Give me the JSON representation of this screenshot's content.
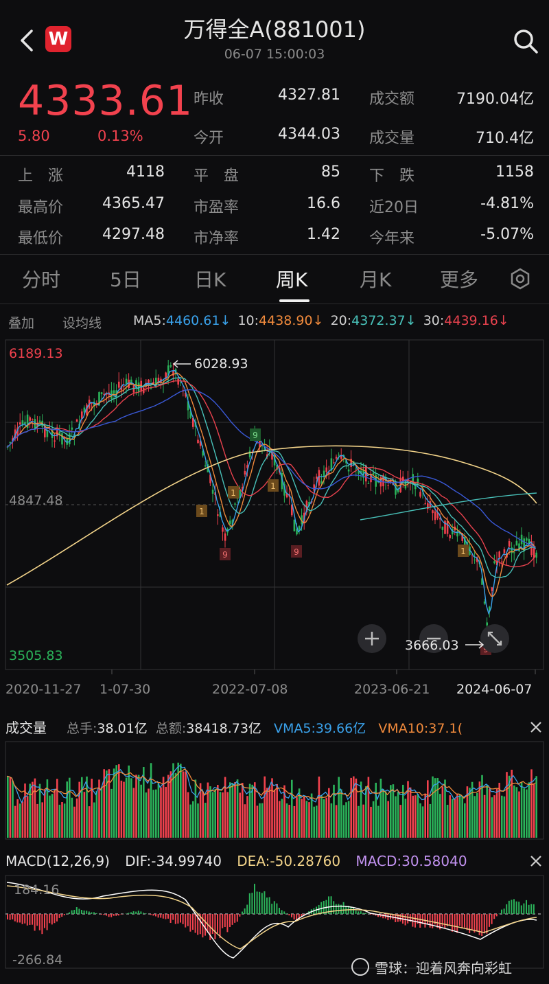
{
  "header": {
    "title": "万得全A(881001)",
    "datetime": "06-07 15:00:03",
    "logo_letter": "W",
    "back_icon": "chevron-left-icon",
    "search_icon": "search-icon"
  },
  "quote": {
    "price": "4333.61",
    "change": "5.80",
    "change_pct": "0.13%",
    "prev_close_label": "昨收",
    "prev_close": "4327.81",
    "open_label": "今开",
    "open": "4344.03",
    "turnover_label": "成交额",
    "turnover": "7190.04亿",
    "volume_label": "成交量",
    "volume": "710.4亿"
  },
  "stats": {
    "up_label": "上　涨",
    "up": "4118",
    "flat_label": "平　盘",
    "flat": "85",
    "down_label": "下　跌",
    "down": "1158",
    "high_label": "最高价",
    "high": "4365.47",
    "pe_label": "市盈率",
    "pe": "16.6",
    "d20_label": "近20日",
    "d20": "-4.81%",
    "low_label": "最低价",
    "low": "4297.48",
    "pb_label": "市净率",
    "pb": "1.42",
    "ytd_label": "今年来",
    "ytd": "-5.07%"
  },
  "tabs": [
    "分时",
    "5日",
    "日K",
    "周K",
    "月K",
    "更多"
  ],
  "active_tab": "周K",
  "ma_bar": {
    "overlay": "叠加",
    "set_ma": "设均线",
    "ma5_label": "MA5:",
    "ma5": "4460.61↓",
    "ma10_label": "10:",
    "ma10": "4438.90↓",
    "ma20_label": "20:",
    "ma20": "4372.37↓",
    "ma30_label": "30:",
    "ma30": "4439.16↓"
  },
  "kline": {
    "y_top": "6189.13",
    "y_mid": "4847.48",
    "y_bottom": "3505.83",
    "high_annot": "6028.93",
    "low_annot": "3666.03",
    "x_labels": [
      "2020-11-27",
      "1-07-30",
      "2022-07-08",
      "2023-06-21",
      "2024-06-07"
    ]
  },
  "volume": {
    "title": "成交量",
    "total_hands_label": "总手:",
    "total_hands": "38.01亿",
    "total_amt_label": "总额:",
    "total_amt": "38418.73亿",
    "vma5_label": "VMA5:",
    "vma5": "39.66亿",
    "vma10_label": "VMA10:",
    "vma10": "37.1("
  },
  "macd": {
    "title": "MACD(12,26,9)",
    "dif_label": "DIF:",
    "dif": "-34.99740",
    "dea_label": "DEA:",
    "dea": "-50.28760",
    "macd_label": "MACD:",
    "macd": "30.58040",
    "y_top": "184.16",
    "y_bottom": "-266.84"
  },
  "watermark": "雪球：迎着风奔向彩虹",
  "colors": {
    "up": "#f2424e",
    "down": "#2bb35a",
    "ma5": "#3aa1ea",
    "ma10": "#f08a3c",
    "ma20": "#48c0b8",
    "ma30": "#e8424e",
    "ma60": "#3a59d8",
    "ma120": "#f3d48a",
    "dea": "#f3d48a",
    "macd_lbl": "#c292f0"
  }
}
